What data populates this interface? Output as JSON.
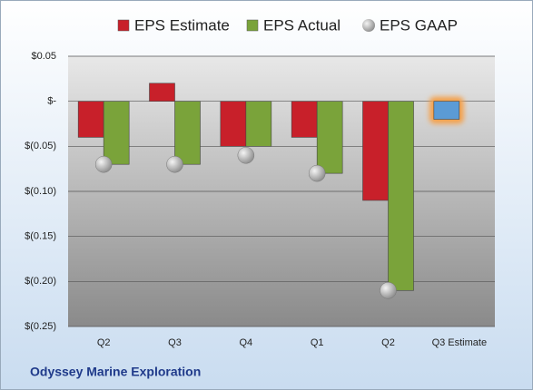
{
  "chart_data": {
    "type": "bar",
    "footer": "Odyssey Marine Exploration",
    "categories": [
      "Q2",
      "Q3",
      "Q4",
      "Q1",
      "Q2",
      "Q3 Estimate"
    ],
    "series": [
      {
        "name": "EPS Estimate",
        "color": "#c8202a",
        "highlight_color": "#5b9bd5",
        "values": [
          -0.04,
          0.02,
          -0.05,
          -0.04,
          -0.11,
          -0.02
        ]
      },
      {
        "name": "EPS Actual",
        "color": "#7aa33a",
        "values": [
          -0.07,
          -0.07,
          -0.05,
          -0.08,
          -0.21,
          null
        ]
      },
      {
        "name": "EPS GAAP",
        "color": "#a6a6a6",
        "values": [
          -0.07,
          -0.07,
          -0.06,
          -0.08,
          -0.21,
          null
        ]
      }
    ],
    "ylim": [
      -0.25,
      0.05
    ],
    "yticks": [
      {
        "value": -0.25,
        "label": "$(0.25)"
      },
      {
        "value": -0.2,
        "label": "$(0.20)"
      },
      {
        "value": -0.15,
        "label": "$(0.15)"
      },
      {
        "value": -0.1,
        "label": "$(0.10)"
      },
      {
        "value": -0.05,
        "label": "$(0.05)"
      },
      {
        "value": 0,
        "label": "$-"
      },
      {
        "value": 0.05,
        "label": "$0.05"
      }
    ],
    "grid": true
  }
}
